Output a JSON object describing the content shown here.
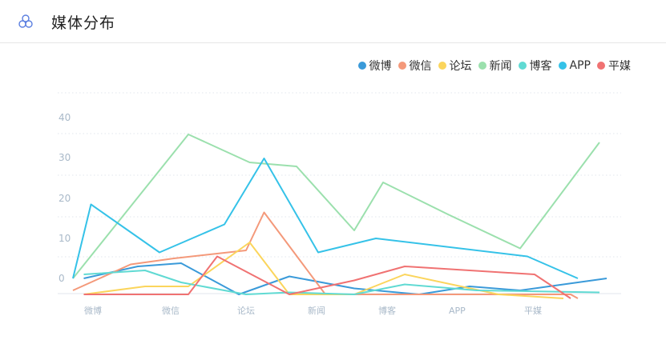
{
  "header": {
    "title": "媒体分布",
    "icon": "three-circles-icon"
  },
  "colors": {
    "series": [
      "#3a9ad9",
      "#f4997a",
      "#fbd55c",
      "#9be0ad",
      "#60dad3",
      "#35c2e8",
      "#f07272"
    ],
    "axis": "#a9b9c9",
    "grid": "#e0e6ec"
  },
  "chart_data": {
    "type": "line",
    "categories": [
      "微博",
      "微信",
      "论坛",
      "新闻",
      "博客",
      "APP",
      "平媒"
    ],
    "y_tick_labels": [
      "0",
      "10",
      "20",
      "30",
      "40"
    ],
    "ylim": [
      -4,
      50
    ],
    "grid": true,
    "legend_position": "top-right",
    "series": [
      {
        "name": "微博",
        "x": [
          0.15,
          0.9,
          1.5,
          2.3,
          3.0,
          3.9,
          4.8,
          5.5,
          6.2,
          7.4
        ],
        "values": [
          0,
          3,
          3.8,
          -4,
          0.5,
          -2.5,
          -4,
          -2,
          -3,
          0
        ]
      },
      {
        "name": "微信",
        "x": [
          0,
          0.8,
          1.4,
          2.4,
          2.65,
          3.5,
          4.2,
          6.9,
          7.0
        ],
        "values": [
          -3,
          3.5,
          5,
          7,
          16.5,
          -4,
          -4,
          -4,
          -5
        ]
      },
      {
        "name": "论坛",
        "x": [
          0.15,
          1.0,
          1.6,
          2.45,
          3.0,
          3.9,
          4.6,
          5.9,
          6.8
        ],
        "values": [
          -4,
          -2,
          -2,
          9,
          -4,
          -4,
          1,
          -4,
          -5
        ]
      },
      {
        "name": "新闻",
        "x": [
          0,
          1.6,
          2.45,
          3.1,
          3.9,
          4.3,
          5.2,
          6.2,
          7.3
        ],
        "values": [
          0,
          36,
          29,
          28,
          12,
          24,
          16,
          7.5,
          34
        ]
      },
      {
        "name": "博客",
        "x": [
          0.15,
          1.0,
          1.5,
          2.4,
          3.0,
          3.9,
          4.6,
          5.6,
          7.3
        ],
        "values": [
          1,
          2,
          -1,
          -4,
          -3.5,
          -4,
          -1.5,
          -3,
          -3.5
        ]
      },
      {
        "name": "APP",
        "x": [
          0,
          0.25,
          1.2,
          2.1,
          2.65,
          3.4,
          4.2,
          6.3,
          7.0
        ],
        "values": [
          0,
          18.5,
          6.5,
          13.5,
          30,
          6.5,
          10,
          5.5,
          0
        ]
      },
      {
        "name": "平媒",
        "x": [
          0.15,
          1.0,
          1.6,
          2.0,
          3.0,
          3.9,
          4.6,
          6.4,
          6.9
        ],
        "values": [
          -4,
          -4,
          -4,
          5.5,
          -4,
          -0.5,
          3,
          1,
          -5
        ]
      }
    ]
  }
}
